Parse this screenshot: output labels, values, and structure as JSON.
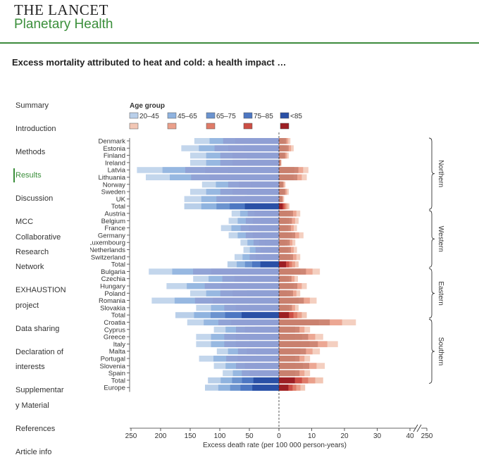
{
  "journal": {
    "name_line1": "THE LANCET",
    "name_line2": "Planetary Health"
  },
  "article": {
    "title": "Excess mortality attributed to heat and cold: a health impact …"
  },
  "nav": {
    "items": [
      {
        "label": "Summary"
      },
      {
        "label": "Introduction"
      },
      {
        "label": "Methods"
      },
      {
        "label": "Results",
        "active": true
      },
      {
        "label": "Discussion"
      },
      {
        "label": "MCC"
      },
      {
        "label": "Collaborative"
      },
      {
        "label": "Research"
      },
      {
        "label": "Network"
      },
      {
        "label": "EXHAUSTION"
      },
      {
        "label": "project"
      },
      {
        "label": "Data sharing"
      },
      {
        "label": "Declaration of"
      },
      {
        "label": "interests"
      },
      {
        "label": "Supplementar"
      },
      {
        "label": "y Material"
      },
      {
        "label": "References"
      },
      {
        "label": "Article info"
      }
    ]
  },
  "colors": {
    "accent": "#3b8f3b",
    "cold": [
      "#b9cfe9",
      "#8fb3df",
      "#6b93cf",
      "#4d77c2",
      "#2a50a6"
    ],
    "heat": [
      "#f2c7b5",
      "#eaa08b",
      "#df7b68",
      "#cc4e45",
      "#9c1f24"
    ]
  },
  "chart_data": {
    "type": "bar",
    "orientation": "horizontal-diverging",
    "xlabel": "Excess death rate (per 100 000 person-years)",
    "legend_title": "Age group",
    "age_groups": [
      "20–45",
      "45–65",
      "65–75",
      "75–85",
      "<85"
    ],
    "x_ticks_cold": [
      "250",
      "200",
      "150",
      "100",
      "50",
      "0"
    ],
    "x_ticks_heat": [
      "10",
      "20",
      "30",
      "40",
      "250"
    ],
    "rows": [
      {
        "label": "Denmark",
        "region": "Northern",
        "cold": 143,
        "heat": 3.5
      },
      {
        "label": "Estonia",
        "region": "Northern",
        "cold": 165,
        "heat": 4.5
      },
      {
        "label": "Finland",
        "region": "Northern",
        "cold": 150,
        "heat": 3
      },
      {
        "label": "Ireland",
        "region": "Northern",
        "cold": 150,
        "heat": 0.8
      },
      {
        "label": "Latvia",
        "region": "Northern",
        "cold": 240,
        "heat": 9
      },
      {
        "label": "Lithuania",
        "region": "Northern",
        "cold": 225,
        "heat": 8.5
      },
      {
        "label": "Norway",
        "region": "Northern",
        "cold": 130,
        "heat": 2
      },
      {
        "label": "Sweden",
        "region": "Northern",
        "cold": 150,
        "heat": 3
      },
      {
        "label": "UK",
        "region": "Northern",
        "cold": 160,
        "heat": 1.6
      },
      {
        "label": "Total",
        "region": "Northern",
        "cold": 160,
        "heat": 3.2,
        "total": true
      },
      {
        "label": "Austria",
        "region": "Western",
        "cold": 80,
        "heat": 6.5
      },
      {
        "label": "Belgium",
        "region": "Western",
        "cold": 85,
        "heat": 6
      },
      {
        "label": "France",
        "region": "Western",
        "cold": 98,
        "heat": 5.5
      },
      {
        "label": "Germany",
        "region": "Western",
        "cold": 85,
        "heat": 7.5
      },
      {
        "label": "Luxembourg",
        "region": "Western",
        "cold": 65,
        "heat": 5
      },
      {
        "label": "Netherlands",
        "region": "Western",
        "cold": 60,
        "heat": 5.5
      },
      {
        "label": "Switzerland",
        "region": "Western",
        "cold": 75,
        "heat": 6.5
      },
      {
        "label": "Total",
        "region": "Western",
        "cold": 87,
        "heat": 6,
        "total": true
      },
      {
        "label": "Bulgaria",
        "region": "Eastern",
        "cold": 220,
        "heat": 12.5
      },
      {
        "label": "Czechia",
        "region": "Eastern",
        "cold": 145,
        "heat": 5.8
      },
      {
        "label": "Hungary",
        "region": "Eastern",
        "cold": 190,
        "heat": 8.5
      },
      {
        "label": "Poland",
        "region": "Eastern",
        "cold": 150,
        "heat": 6.5
      },
      {
        "label": "Romania",
        "region": "Eastern",
        "cold": 215,
        "heat": 11.5
      },
      {
        "label": "Slovakia",
        "region": "Eastern",
        "cold": 140,
        "heat": 6
      },
      {
        "label": "Total",
        "region": "Eastern",
        "cold": 175,
        "heat": 8.5,
        "total": true
      },
      {
        "label": "Croatia",
        "region": "Southern",
        "cold": 155,
        "heat": 23.5
      },
      {
        "label": "Cyprus",
        "region": "Southern",
        "cold": 110,
        "heat": 9.5
      },
      {
        "label": "Greece",
        "region": "Southern",
        "cold": 140,
        "heat": 13.5
      },
      {
        "label": "Italy",
        "region": "Southern",
        "cold": 140,
        "heat": 18
      },
      {
        "label": "Malta",
        "region": "Southern",
        "cold": 105,
        "heat": 12.5
      },
      {
        "label": "Portugal",
        "region": "Southern",
        "cold": 135,
        "heat": 9.5
      },
      {
        "label": "Slovenia",
        "region": "Southern",
        "cold": 110,
        "heat": 14
      },
      {
        "label": "Spain",
        "region": "Southern",
        "cold": 95,
        "heat": 9.5
      },
      {
        "label": "Total",
        "region": "Southern",
        "cold": 120,
        "heat": 13.5,
        "total": true
      },
      {
        "label": "Europe",
        "region": "",
        "cold": 125,
        "heat": 8,
        "total": true
      }
    ],
    "regions": [
      "Northern",
      "Western",
      "Eastern",
      "Southern"
    ]
  }
}
